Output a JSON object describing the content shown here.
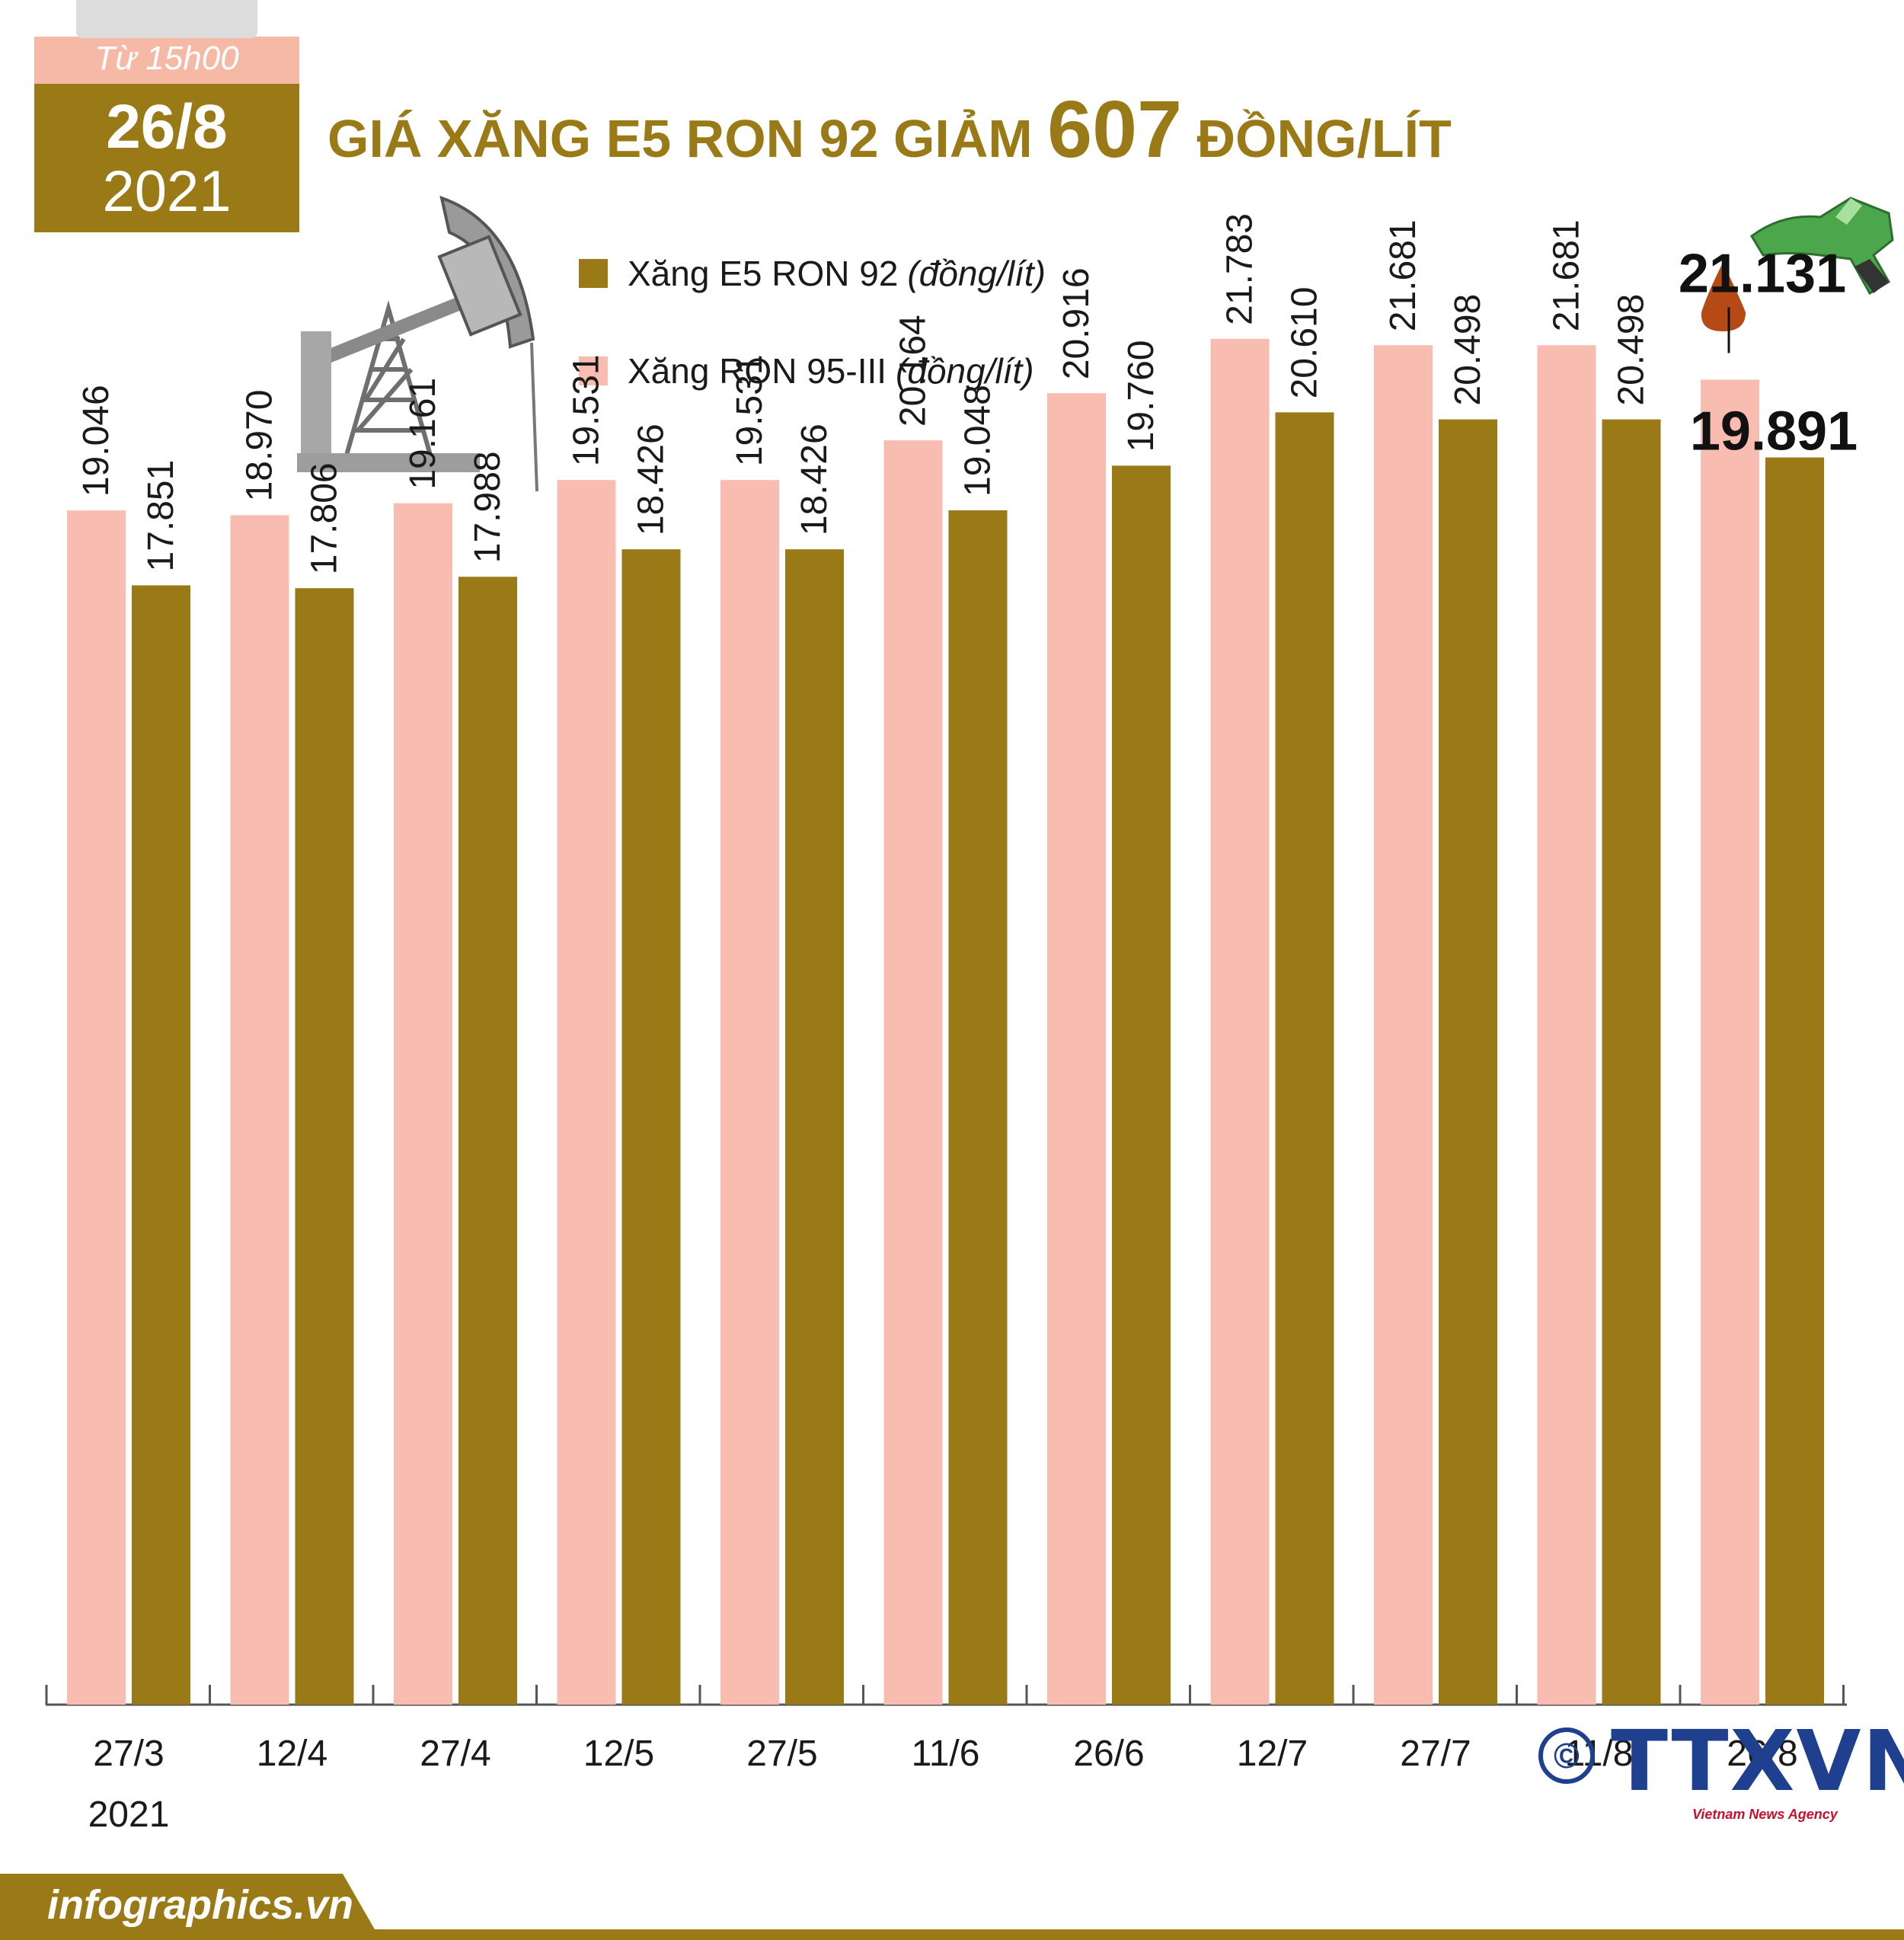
{
  "badge": {
    "from": "Từ 15h00",
    "date": "26/8",
    "year": "2021"
  },
  "title": {
    "part1": "GIÁ XĂNG E5 RON 92 GIẢM ",
    "amount": "607",
    "part2": " ĐỒNG/LÍT"
  },
  "legend": [
    {
      "label": "Xăng E5 RON 92",
      "unit": "(đồng/lít)",
      "color": "#9a7a17"
    },
    {
      "label": "Xăng RON 95-III",
      "unit": "(đồng/lít)",
      "color": "#f8bdb0"
    }
  ],
  "chart_data": {
    "type": "bar",
    "categories": [
      "27/3",
      "12/4",
      "27/4",
      "12/5",
      "27/5",
      "11/6",
      "26/6",
      "12/7",
      "27/7",
      "11/8",
      "26/8"
    ],
    "first_category_sub": "2021",
    "series": [
      {
        "name": "Xăng RON 95-III",
        "color": "#f8bdb0",
        "values": [
          19046,
          18970,
          19161,
          19531,
          19531,
          20164,
          20916,
          21783,
          21681,
          21681,
          21131
        ],
        "labels": [
          "19.046",
          "18.970",
          "19.161",
          "19.531",
          "19.531",
          "20.164",
          "20.916",
          "21.783",
          "21.681",
          "21.681",
          "21.131"
        ]
      },
      {
        "name": "Xăng E5 RON 92",
        "color": "#9a7a17",
        "values": [
          17851,
          17806,
          17988,
          18426,
          18426,
          19048,
          19760,
          20610,
          20498,
          20498,
          19891
        ],
        "labels": [
          "17.851",
          "17.806",
          "17.988",
          "18.426",
          "18.426",
          "19.048",
          "19.760",
          "20.610",
          "20.498",
          "20.498",
          "19.891"
        ]
      }
    ],
    "ylim": [
      0,
      25000
    ]
  },
  "footer": {
    "site": "infographics.vn",
    "copyright": "©",
    "agency": "TTXVN",
    "agency_sub": "Vietnam News Agency"
  },
  "colors": {
    "brand_gold": "#9a7a17",
    "pink": "#f8bdb0",
    "footer": "#9a7a17"
  }
}
